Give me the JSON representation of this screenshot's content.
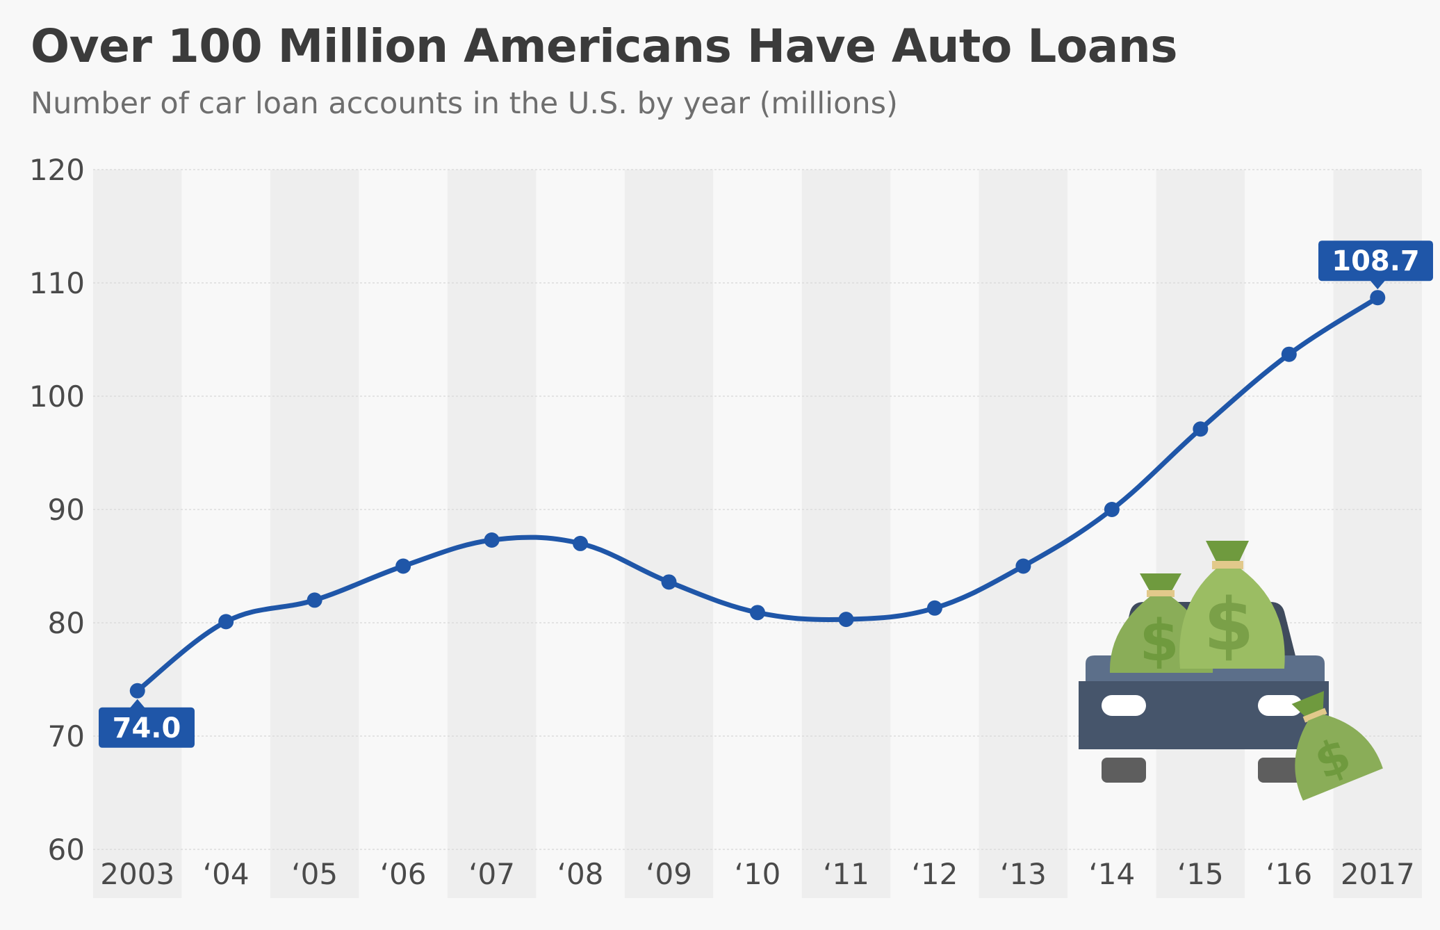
{
  "title": "Over 100 Million Americans Have Auto Loans",
  "subtitle": "Number of car loan accounts in the U.S. by year (millions)",
  "colors": {
    "line": "#1f56a8",
    "label_bg": "#1f56a8",
    "stripe": "#eeeeee",
    "background": "#f8f8f8",
    "grid": "#dcdcdc",
    "axis_text": "#4a4a4a",
    "car_body": "#4a5a70",
    "money_bag": "#8aad58"
  },
  "chart_data": {
    "type": "line",
    "categories": [
      "2003",
      "‘04",
      "‘05",
      "‘06",
      "‘07",
      "‘08",
      "‘09",
      "‘10",
      "‘11",
      "‘12",
      "‘13",
      "‘14",
      "‘15",
      "‘16",
      "2017"
    ],
    "series": [
      {
        "values": [
          74.0,
          80.1,
          82.0,
          85.0,
          87.3,
          87.0,
          83.6,
          80.9,
          80.3,
          81.3,
          85.0,
          90.0,
          97.1,
          103.7,
          108.7
        ]
      }
    ],
    "yticks": [
      "60",
      "70",
      "80",
      "90",
      "100",
      "110",
      "120"
    ],
    "ylim": [
      60,
      120
    ],
    "grid": true,
    "alternating_column_stripes": true,
    "data_labels": [
      {
        "index": 0,
        "text": "74.0",
        "placement": "below"
      },
      {
        "index": 14,
        "text": "108.7",
        "placement": "above"
      }
    ],
    "illustration": "car-with-money-bags-icon"
  }
}
